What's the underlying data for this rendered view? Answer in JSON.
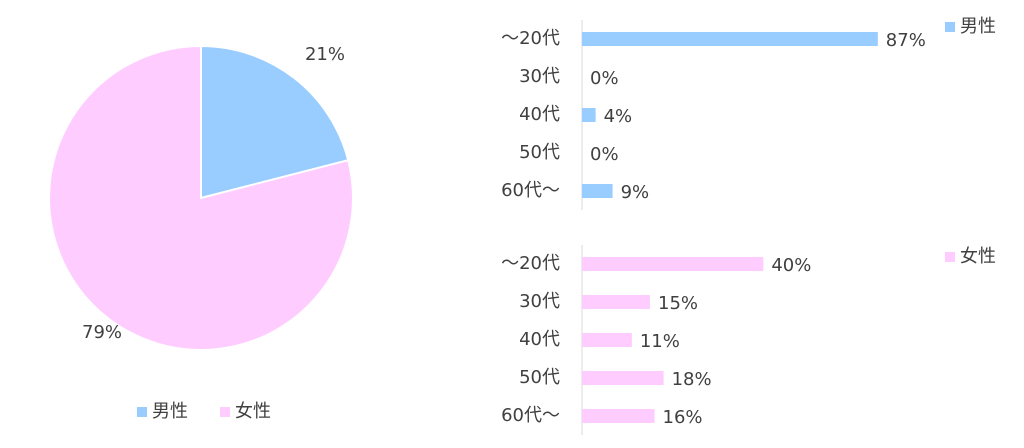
{
  "chart_data": [
    {
      "type": "pie",
      "categories": [
        "男性",
        "女性"
      ],
      "values": [
        21,
        79
      ],
      "value_labels": [
        "21%",
        "79%"
      ],
      "colors": [
        "#99ccff",
        "#ffccff"
      ],
      "legend_position": "bottom"
    },
    {
      "type": "bar",
      "orientation": "horizontal",
      "categories": [
        "～20代",
        "30代",
        "40代",
        "50代",
        "60代～"
      ],
      "series": [
        {
          "name": "男性",
          "color": "#99ccff",
          "values": [
            87,
            0,
            4,
            0,
            9
          ],
          "value_labels": [
            "87%",
            "0%",
            "4%",
            "0%",
            "9%"
          ]
        }
      ],
      "xlim": [
        0,
        100
      ],
      "legend_position": "top-right"
    },
    {
      "type": "bar",
      "orientation": "horizontal",
      "categories": [
        "～20代",
        "30代",
        "40代",
        "50代",
        "60代～"
      ],
      "series": [
        {
          "name": "女性",
          "color": "#ffccff",
          "values": [
            40,
            15,
            11,
            18,
            16
          ],
          "value_labels": [
            "40%",
            "15%",
            "11%",
            "18%",
            "16%"
          ]
        }
      ],
      "xlim": [
        0,
        75
      ],
      "legend_position": "top-right"
    }
  ]
}
